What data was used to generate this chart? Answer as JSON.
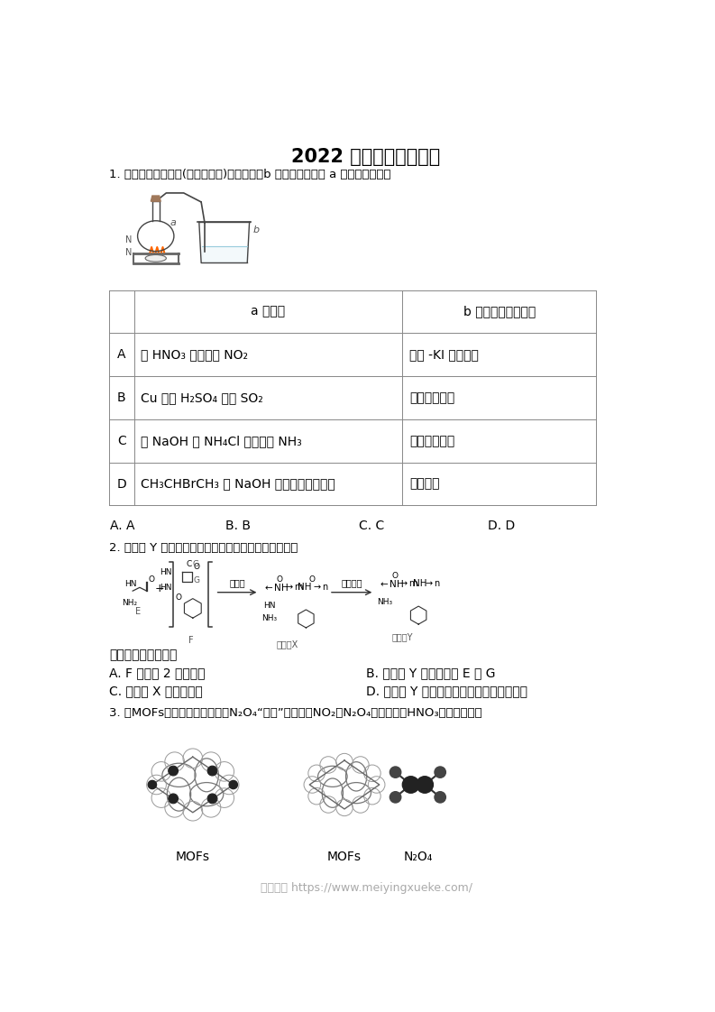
{
  "title": "2022 年北京卷部分试题",
  "bg_color": "#ffffff",
  "text_color": "#000000",
  "footer_text": "魅影学科 https://www.meiyingxueke.com/",
  "footer_color": "#aaaaaa",
  "q1_text": "1. 利用如图所示装置(夹持装置略)进行实验，b 中现象不能证明 a 中产物生成的是",
  "table_header_col2": "a 中反应",
  "table_header_col3": "b 中检测试剂及现象",
  "row_labels": [
    "A",
    "B",
    "C",
    "D"
  ],
  "col1_texts": [
    "浓 HNO₃ 分解生成 NO₂",
    "Cu 与浓 H₂SO₄ 生成 SO₂",
    "浓 NaOH 与 NH₄Cl 溶液生成 NH₃",
    "CH₃CHBrCH₃ 与 NaOH 乙醇溶液生成丙烯"
  ],
  "col2_texts": [
    "淀粉 -KI 溶液变蓝",
    "品红溶液褪色",
    "酚酞溶液变红",
    "溴水褪色"
  ],
  "q1_options": [
    "A. A",
    "B. B",
    "C. C",
    "D. D"
  ],
  "q2_text": "2. 高分子 Y 是一种人工合成的多肽，其合成路线如下。",
  "q2_label": "下列说法不正确的是",
  "q2_options": [
    "A. F 中含有 2 个酰胺基",
    "B. 高分子 Y 水解可得到 E 和 G",
    "C. 高分子 X 中存在氢键",
    "D. 高分子 Y 的合成过程中进行了官能团保护"
  ],
  "q3_text": "3. 某MOFs的多孔材料刚好可将N₂O₄“固定”，实现了NO₂与N₂O₄分离并制备HNO₃，如图所示：",
  "mofs_label": "MOFs",
  "n2o4_label": "N₂O₄"
}
